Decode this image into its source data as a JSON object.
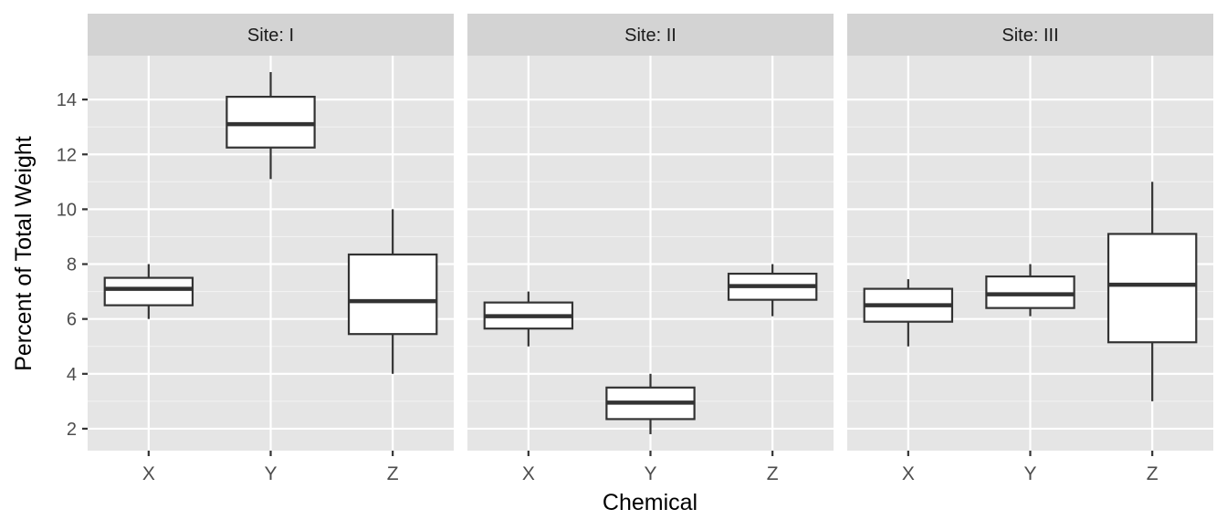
{
  "chart_data": {
    "type": "boxplot",
    "facet_prefix": "Site: ",
    "xlabel": "Chemical",
    "ylabel": "Percent of Total Weight",
    "ylim": [
      1.2,
      15.6
    ],
    "y_ticks": [
      2,
      4,
      6,
      8,
      10,
      12,
      14
    ],
    "y_tick_labels": [
      "2",
      "4",
      "6",
      "8",
      "10",
      "12",
      "14"
    ],
    "categories": [
      "X",
      "Y",
      "Z"
    ],
    "grid": true,
    "panel_bg": "#e5e5e5",
    "strip_bg": "#d3d3d3",
    "box_fill": "#ffffff",
    "box_stroke": "#333333",
    "facets": [
      {
        "site": "I",
        "strip_label": "Site: I",
        "boxes": [
          {
            "category": "X",
            "min": 6.0,
            "q1": 6.5,
            "median": 7.1,
            "q3": 7.5,
            "max": 8.0
          },
          {
            "category": "Y",
            "min": 11.1,
            "q1": 12.25,
            "median": 13.1,
            "q3": 14.1,
            "max": 15.0
          },
          {
            "category": "Z",
            "min": 4.0,
            "q1": 5.45,
            "median": 6.65,
            "q3": 8.35,
            "max": 10.0
          }
        ]
      },
      {
        "site": "II",
        "strip_label": "Site: II",
        "boxes": [
          {
            "category": "X",
            "min": 5.0,
            "q1": 5.65,
            "median": 6.1,
            "q3": 6.6,
            "max": 7.0
          },
          {
            "category": "Y",
            "min": 1.8,
            "q1": 2.35,
            "median": 2.95,
            "q3": 3.5,
            "max": 4.0
          },
          {
            "category": "Z",
            "min": 6.1,
            "q1": 6.7,
            "median": 7.2,
            "q3": 7.65,
            "max": 8.0
          }
        ]
      },
      {
        "site": "III",
        "strip_label": "Site: III",
        "boxes": [
          {
            "category": "X",
            "min": 5.0,
            "q1": 5.9,
            "median": 6.5,
            "q3": 7.1,
            "max": 7.45
          },
          {
            "category": "Y",
            "min": 6.1,
            "q1": 6.4,
            "median": 6.9,
            "q3": 7.55,
            "max": 8.0
          },
          {
            "category": "Z",
            "min": 3.0,
            "q1": 5.15,
            "median": 7.25,
            "q3": 9.1,
            "max": 11.0
          }
        ]
      }
    ]
  }
}
